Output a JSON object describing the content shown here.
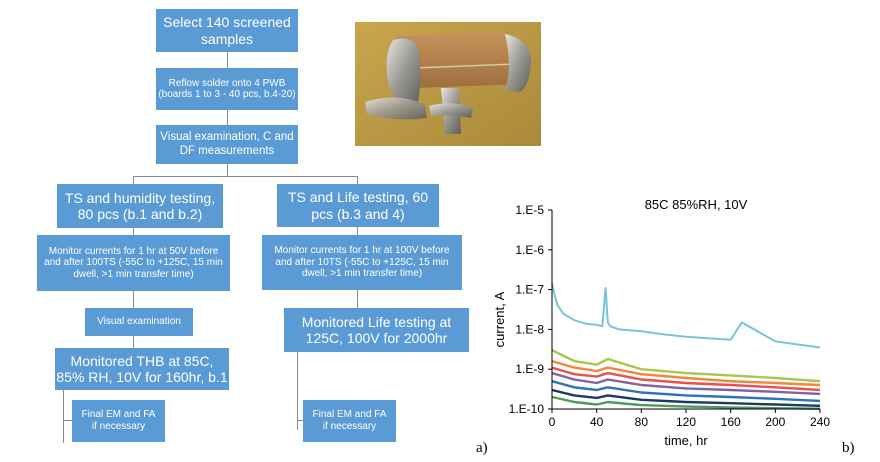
{
  "flow": {
    "select": "Select 140 screened samples",
    "reflow": "Reflow solder onto 4 PWB (boards 1 to 3 - 40 pcs, b.4-20)",
    "visual_cdf": "Visual examination, C and DF measurements",
    "left": {
      "branch": "TS and humidity testing, 80 pcs (b.1 and b.2)",
      "monitor": "Monitor currents for 1 hr at 50V before and after 100TS (-55C to +125C, 15 min dwell, >1 min transfer time)",
      "visual": "Visual examination",
      "thb": "Monitored THB at 85C, 85% RH, 10V for 160hr, b.1",
      "final": "Final EM and FA if necessary"
    },
    "right": {
      "branch": "TS and Life testing, 60 pcs (b.3 and 4)",
      "monitor": "Monitor currents for 1 hr at 100V before and after 10TS (-55C to +125C, 15 min dwell, >1 min transfer time)",
      "life": "Monitored Life testing at 125C, 100V for 2000hr",
      "final": "Final EM and FA if necessary"
    }
  },
  "labels": {
    "a": "a)",
    "b": "b)"
  },
  "colors": {
    "box": "#5b9bd5",
    "connector": "#8a8a8a",
    "main_series": "#79c3d8"
  },
  "chart_data": {
    "type": "line",
    "title": "85C 85%RH, 10V",
    "xlabel": "time, hr",
    "ylabel": "current, A",
    "xlim": [
      0,
      240
    ],
    "ylim": [
      1e-10,
      1e-05
    ],
    "yscale": "log",
    "xticks": [
      "0",
      "40",
      "80",
      "120",
      "160",
      "200",
      "240"
    ],
    "yticks": [
      "1.E-10",
      "1.E-9",
      "1.E-8",
      "1.E-7",
      "1.E-6",
      "1.E-5"
    ],
    "grid": false,
    "series": [
      {
        "color": "#79c3d8",
        "x": [
          0,
          2,
          5,
          10,
          20,
          30,
          40,
          45,
          48,
          50,
          52,
          60,
          80,
          100,
          120,
          160,
          170,
          200,
          240
        ],
        "y": [
          1.5e-07,
          8e-08,
          4e-08,
          2.5e-08,
          1.7e-08,
          1.4e-08,
          1.3e-08,
          1.2e-08,
          1.1e-07,
          1.5e-08,
          1.2e-08,
          1e-08,
          9e-09,
          7.5e-09,
          6.5e-09,
          5.5e-09,
          1.5e-08,
          5e-09,
          3.5e-09
        ]
      },
      {
        "color": "#a9c64d",
        "x": [
          0,
          20,
          40,
          50,
          80,
          120,
          160,
          200,
          240
        ],
        "y": [
          3e-09,
          1.6e-09,
          1.3e-09,
          1.8e-09,
          1e-09,
          8e-10,
          7e-10,
          6e-10,
          5e-10
        ]
      },
      {
        "color": "#f0883a",
        "x": [
          0,
          20,
          40,
          50,
          80,
          120,
          160,
          200,
          240
        ],
        "y": [
          1.6e-09,
          1.1e-09,
          9e-10,
          1.1e-09,
          7.5e-10,
          6e-10,
          5e-10,
          4.5e-10,
          4e-10
        ]
      },
      {
        "color": "#e9504f",
        "x": [
          0,
          20,
          40,
          50,
          80,
          120,
          160,
          200,
          240
        ],
        "y": [
          1.1e-09,
          7.5e-10,
          6.5e-10,
          8e-10,
          5.5e-10,
          4.5e-10,
          4e-10,
          3.5e-10,
          3e-10
        ]
      },
      {
        "color": "#8064a2",
        "x": [
          0,
          20,
          40,
          50,
          80,
          120,
          160,
          200,
          240
        ],
        "y": [
          8e-10,
          5.5e-10,
          4.5e-10,
          5.5e-10,
          4e-10,
          3.3e-10,
          3e-10,
          2.7e-10,
          2.4e-10
        ]
      },
      {
        "color": "#2e75b6",
        "x": [
          0,
          20,
          40,
          50,
          80,
          120,
          160,
          200,
          240
        ],
        "y": [
          5e-10,
          3.5e-10,
          3e-10,
          3.5e-10,
          2.6e-10,
          2.2e-10,
          2e-10,
          1.8e-10,
          1.6e-10
        ]
      },
      {
        "color": "#203864",
        "x": [
          0,
          20,
          40,
          50,
          80,
          120,
          160,
          200,
          240
        ],
        "y": [
          3e-10,
          2.2e-10,
          1.9e-10,
          2.2e-10,
          1.7e-10,
          1.5e-10,
          1.4e-10,
          1.3e-10,
          1.2e-10
        ]
      },
      {
        "color": "#4e9a5f",
        "x": [
          0,
          20,
          40,
          50,
          80,
          120,
          160,
          200,
          240
        ],
        "y": [
          2e-10,
          1.5e-10,
          1.3e-10,
          1.5e-10,
          1.25e-10,
          1.15e-10,
          1.1e-10,
          1.05e-10,
          1.02e-10
        ]
      }
    ]
  }
}
